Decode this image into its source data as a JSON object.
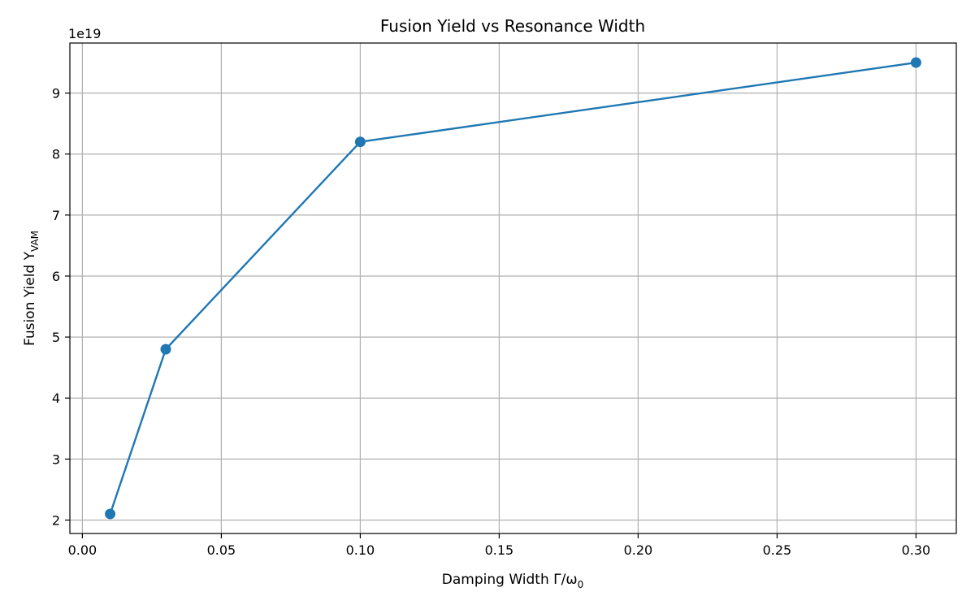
{
  "chart_data": {
    "type": "line",
    "title": "Fusion Yield vs Resonance Width",
    "xlabel": "Damping Width Γ/ω",
    "xlabel_sub": "0",
    "ylabel": "Fusion Yield Y",
    "ylabel_sub": "VAM",
    "y_offset_label": "1e19",
    "x": [
      0.01,
      0.03,
      0.1,
      0.3
    ],
    "series": [
      {
        "values": [
          2.1,
          4.8,
          8.2,
          9.5
        ],
        "color": "#1f77b4"
      }
    ],
    "xlim": [
      -0.0045,
      0.3145
    ],
    "ylim": [
      1.78,
      9.82
    ],
    "xticks": [
      0.0,
      0.05,
      0.1,
      0.15,
      0.2,
      0.25,
      0.3
    ],
    "xtick_labels": [
      "0.00",
      "0.05",
      "0.10",
      "0.15",
      "0.20",
      "0.25",
      "0.30"
    ],
    "yticks": [
      2,
      3,
      4,
      5,
      6,
      7,
      8,
      9
    ],
    "ytick_labels": [
      "2",
      "3",
      "4",
      "5",
      "6",
      "7",
      "8",
      "9"
    ],
    "grid": true,
    "markers": true
  }
}
